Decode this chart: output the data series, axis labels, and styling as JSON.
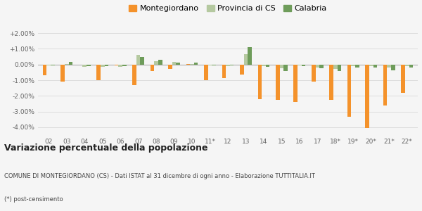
{
  "categories": [
    "02",
    "03",
    "04",
    "05",
    "06",
    "07",
    "08",
    "09",
    "10",
    "11*",
    "12",
    "13",
    "14",
    "15",
    "16",
    "17",
    "18*",
    "19*",
    "20*",
    "21*",
    "22*"
  ],
  "montegiordano": [
    -0.7,
    -1.1,
    0.0,
    -1.0,
    -0.05,
    -1.3,
    -0.4,
    -0.3,
    0.05,
    -1.0,
    -0.85,
    -0.65,
    -2.2,
    -2.25,
    -2.4,
    -1.1,
    -2.25,
    -3.35,
    -4.05,
    -2.6,
    -1.8
  ],
  "provincia_cs": [
    -0.05,
    0.05,
    -0.15,
    -0.15,
    -0.15,
    0.6,
    0.2,
    0.15,
    0.05,
    -0.05,
    -0.1,
    0.65,
    -0.1,
    -0.25,
    -0.05,
    -0.2,
    -0.3,
    -0.1,
    -0.1,
    -0.2,
    -0.1
  ],
  "calabria": [
    -0.05,
    0.15,
    -0.1,
    -0.1,
    -0.1,
    0.5,
    0.3,
    0.1,
    0.1,
    -0.08,
    -0.08,
    1.1,
    -0.15,
    -0.4,
    -0.1,
    -0.25,
    -0.4,
    -0.2,
    -0.2,
    -0.35,
    -0.2
  ],
  "color_montegiordano": "#f4922b",
  "color_provincia": "#b5c9a0",
  "color_calabria": "#6e9c5a",
  "title": "Variazione percentuale della popolazione",
  "subtitle": "COMUNE DI MONTEGIORDANO (CS) - Dati ISTAT al 31 dicembre di ogni anno - Elaborazione TUTTITALIA.IT",
  "footnote": "(*) post-censimento",
  "legend_labels": [
    "Montegiordano",
    "Provincia di CS",
    "Calabria"
  ],
  "ylim_pct": [
    -4.5,
    2.5
  ],
  "yticks_pct": [
    -4.0,
    -3.0,
    -2.0,
    -1.0,
    0.0,
    1.0,
    2.0
  ],
  "ytick_labels": [
    "-4.00%",
    "-3.00%",
    "-2.00%",
    "-1.00%",
    "0.00%",
    "+1.00%",
    "+2.00%"
  ],
  "background_color": "#f5f5f5",
  "grid_color": "#dddddd"
}
